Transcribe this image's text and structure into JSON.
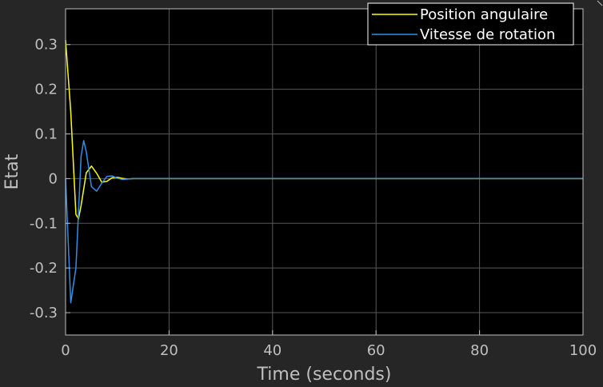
{
  "chart_data": {
    "type": "line",
    "title": "",
    "xlabel": "Time (seconds)",
    "ylabel": "Etat",
    "xlim": [
      0,
      100
    ],
    "ylim": [
      -0.35,
      0.38
    ],
    "xticks": [
      0,
      20,
      40,
      60,
      80,
      100
    ],
    "yticks": [
      -0.3,
      -0.2,
      -0.1,
      0,
      0.1,
      0.2,
      0.3
    ],
    "xtick_labels": [
      "0",
      "20",
      "40",
      "60",
      "80",
      "100"
    ],
    "ytick_labels": [
      "-0.3",
      "-0.2",
      "-0.1",
      "0",
      "0.1",
      "0.2",
      "0.3"
    ],
    "grid": true,
    "legend_position": "top-right",
    "background_color": "#000000",
    "figure_color": "#262626",
    "grid_color": "#595959",
    "series": [
      {
        "name": "Position angulaire",
        "color": "#ffff00",
        "x": [
          0,
          1,
          2,
          2.5,
          3,
          4,
          5,
          6,
          7,
          8,
          9,
          10,
          11,
          12,
          13,
          14,
          100
        ],
        "y": [
          0.31,
          0.15,
          -0.08,
          -0.09,
          -0.06,
          0.013,
          0.028,
          0.012,
          -0.008,
          -0.006,
          0.002,
          0.003,
          0.0005,
          -0.001,
          0,
          0,
          0
        ]
      },
      {
        "name": "Vitesse de rotation",
        "color": "#2e8fea",
        "x": [
          0,
          1,
          2,
          3,
          3.5,
          4,
          5,
          6,
          7,
          8,
          9,
          10,
          11,
          12,
          13,
          14,
          100
        ],
        "y": [
          0,
          -0.278,
          -0.2,
          0.05,
          0.085,
          0.06,
          -0.018,
          -0.028,
          -0.01,
          0.005,
          0.006,
          0.001,
          -0.002,
          -0.001,
          0,
          0,
          0
        ]
      }
    ]
  }
}
